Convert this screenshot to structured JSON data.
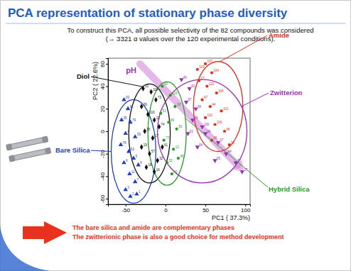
{
  "chart_data": {
    "type": "scatter",
    "title": "PCA representation of stationary phase diversity",
    "subtitle": [
      "To construct this PCA, all possible selectivity of the 82 compounds was considered",
      "(→ 3321 α values over the 120 experimental conditions)."
    ],
    "x_label": "PC1 ( 37.3%)",
    "y_label": "PC2 ( 22.6%)",
    "xlim": [
      -72,
      106
    ],
    "ylim": [
      -65,
      65
    ],
    "xticks": [
      -50,
      0,
      50,
      100
    ],
    "yticks": [
      -60,
      -40,
      -20,
      0,
      20,
      40,
      60
    ],
    "series": [
      {
        "name": "Bare Silica",
        "color": "#1f3fbf",
        "marker": "triangle",
        "x": [
          -52,
          -47,
          -55,
          -44,
          -50,
          -38,
          -56,
          -46,
          -40,
          -52,
          -34,
          -45,
          -38,
          -50,
          -44,
          -36
        ],
        "y": [
          28,
          20,
          10,
          8,
          -2,
          -5,
          -12,
          -18,
          -24,
          -28,
          -30,
          -38,
          -45,
          -52,
          -58,
          -56
        ],
        "labels": [
          "93",
          "91",
          "35",
          "79",
          "4",
          "39",
          "78",
          "33",
          "5",
          "9",
          "6",
          "11",
          "7",
          "3",
          "2",
          "1"
        ],
        "ellipse": {
          "cx": -40,
          "cy": -18,
          "rx": 28,
          "ry": 46
        }
      },
      {
        "name": "Diol",
        "color": "#111111",
        "marker": "diamond",
        "x": [
          -28,
          -18,
          -12,
          -30,
          -22,
          -14,
          -8,
          -26,
          -16,
          -30,
          -20,
          -10,
          -24,
          -14,
          -4
        ],
        "y": [
          38,
          35,
          28,
          22,
          15,
          10,
          4,
          0,
          -6,
          -14,
          -20,
          -26,
          -32,
          -36,
          -14
        ],
        "labels": [
          "10",
          "118",
          "73",
          "26",
          "116",
          "22",
          "74",
          "15",
          "17",
          "19",
          "57",
          "32",
          "18",
          "16",
          "61"
        ],
        "ellipse": {
          "cx": -20,
          "cy": -2,
          "rx": 26,
          "ry": 44
        }
      },
      {
        "name": "Hybrid Silica",
        "color": "#2a9a2a",
        "marker": "circle",
        "x": [
          -4,
          6,
          12,
          -6,
          4,
          14,
          -2,
          10,
          2,
          8,
          16
        ],
        "y": [
          40,
          32,
          22,
          16,
          8,
          2,
          -8,
          -16,
          -28,
          -38,
          -24
        ],
        "labels": [
          "60",
          "119",
          "38",
          "51",
          "84",
          "50",
          "77",
          "13",
          "52",
          "40",
          "45"
        ],
        "ellipse": {
          "cx": 2,
          "cy": -2,
          "rx": 24,
          "ry": 46
        }
      },
      {
        "name": "Amide",
        "color": "#e0301e",
        "marker": "circle",
        "x": [
          40,
          50,
          58,
          42,
          52,
          64,
          46,
          56,
          70,
          50,
          62,
          74,
          58,
          80
        ],
        "y": [
          55,
          60,
          52,
          45,
          40,
          34,
          28,
          22,
          18,
          12,
          6,
          0,
          -8,
          -12
        ],
        "labels": [
          "103",
          "107",
          "104",
          "27",
          "120",
          "105",
          "47",
          "44",
          "101",
          "102",
          "106",
          "48",
          "46",
          "56"
        ],
        "ellipse": {
          "cx": 66,
          "cy": 22,
          "rx": 31,
          "ry": 40
        }
      },
      {
        "name": "Zwitterion",
        "color": "#9b30b5",
        "marker": "triangle-down",
        "x": [
          20,
          30,
          26,
          38,
          34,
          46,
          50,
          66,
          40,
          76,
          88,
          96,
          62,
          28
        ],
        "y": [
          46,
          38,
          26,
          20,
          10,
          4,
          -2,
          -10,
          -14,
          -20,
          -28,
          -36,
          -26,
          -2
        ],
        "labels": [
          "49",
          "43",
          "97",
          "98",
          "99",
          "100",
          "66",
          "67",
          "64",
          "94",
          "95",
          "37",
          "65",
          "63"
        ],
        "ellipse": {
          "cx": 46,
          "cy": 0,
          "rx": 56,
          "ry": 46
        }
      }
    ],
    "annotations": [
      {
        "text": "pH",
        "color": "#d27fd8",
        "x": [
          -32,
          98
        ],
        "y": [
          60,
          -36
        ]
      }
    ],
    "notes": [
      "The bare silica and amide are complementary phases",
      "The zwitterionic phase is also a good choice for method development"
    ]
  }
}
